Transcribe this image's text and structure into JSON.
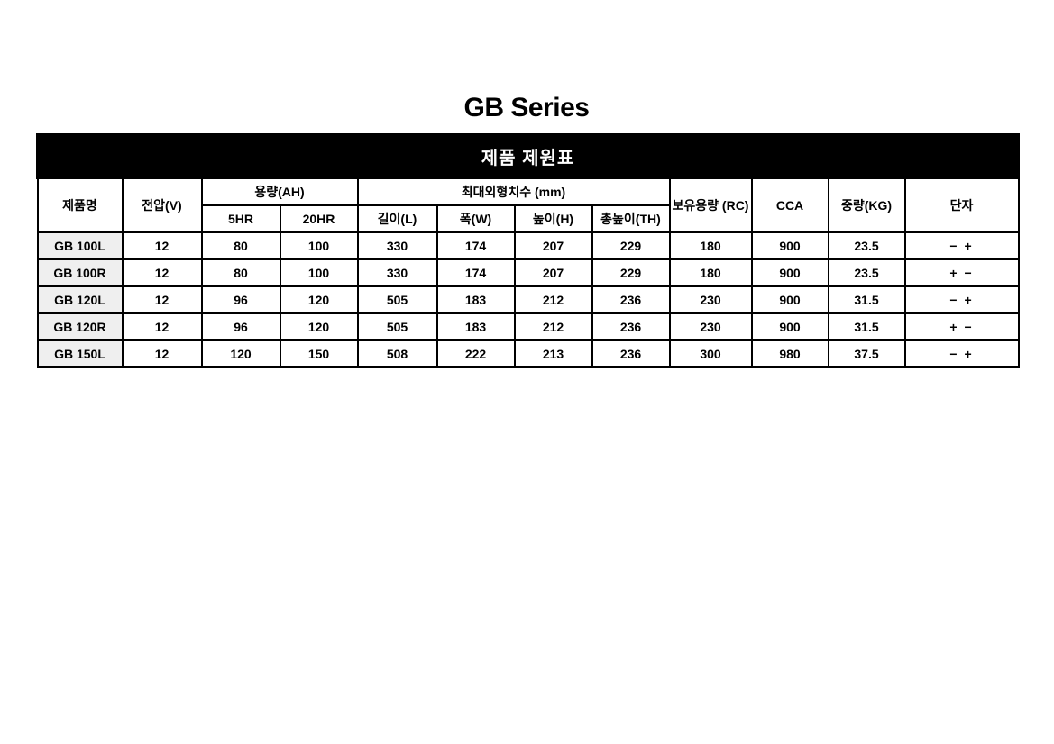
{
  "page": {
    "title": "GB Series"
  },
  "banner": {
    "title": "제품 제원표"
  },
  "table": {
    "headers": {
      "product": "제품명",
      "voltage": "전압(V)",
      "capacity_group": "용량(AH)",
      "capacity_5hr": "5HR",
      "capacity_20hr": "20HR",
      "dimensions_group": "최대외형치수 (mm)",
      "length": "길이(L)",
      "width": "폭(W)",
      "height": "높이(H)",
      "total_height": "총높이(TH)",
      "reserve_capacity": "보유용량 (RC)",
      "cca": "CCA",
      "weight": "중량(KG)",
      "terminal": "단자"
    },
    "rows": [
      {
        "product": "GB 100L",
        "values": [
          "12",
          "80",
          "100",
          "330",
          "174",
          "207",
          "229",
          "180",
          "900",
          "23.5",
          "− +"
        ]
      },
      {
        "product": "GB 100R",
        "values": [
          "12",
          "80",
          "100",
          "330",
          "174",
          "207",
          "229",
          "180",
          "900",
          "23.5",
          "+ −"
        ]
      },
      {
        "product": "GB 120L",
        "values": [
          "12",
          "96",
          "120",
          "505",
          "183",
          "212",
          "236",
          "230",
          "900",
          "31.5",
          "− +"
        ]
      },
      {
        "product": "GB 120R",
        "values": [
          "12",
          "96",
          "120",
          "505",
          "183",
          "212",
          "236",
          "230",
          "900",
          "31.5",
          "+ −"
        ]
      },
      {
        "product": "GB 150L",
        "values": [
          "12",
          "120",
          "150",
          "508",
          "222",
          "213",
          "236",
          "300",
          "980",
          "37.5",
          "− +"
        ]
      }
    ],
    "colors": {
      "banner_bg": "#000000",
      "banner_text": "#ffffff",
      "row_header_bg": "#efefef",
      "border": "#000000"
    }
  }
}
